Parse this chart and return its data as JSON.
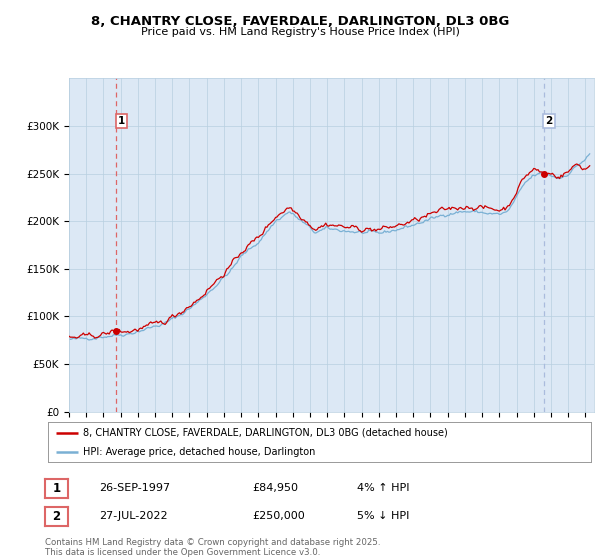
{
  "title": "8, CHANTRY CLOSE, FAVERDALE, DARLINGTON, DL3 0BG",
  "subtitle": "Price paid vs. HM Land Registry's House Price Index (HPI)",
  "ylim": [
    0,
    350000
  ],
  "yticks": [
    0,
    50000,
    100000,
    150000,
    200000,
    250000,
    300000
  ],
  "ytick_labels": [
    "£0",
    "£50K",
    "£100K",
    "£150K",
    "£200K",
    "£250K",
    "£300K"
  ],
  "sale1_date": 1997.74,
  "sale1_price": 84950,
  "sale1_label": "1",
  "sale2_date": 2022.57,
  "sale2_price": 250000,
  "sale2_label": "2",
  "line_color_price": "#cc0000",
  "line_color_hpi": "#7ab0d4",
  "dashed_line_color1": "#dd6666",
  "dashed_line_color2": "#aabbdd",
  "legend1": "8, CHANTRY CLOSE, FAVERDALE, DARLINGTON, DL3 0BG (detached house)",
  "legend2": "HPI: Average price, detached house, Darlington",
  "table_row1": [
    "1",
    "26-SEP-1997",
    "£84,950",
    "4% ↑ HPI"
  ],
  "table_row2": [
    "2",
    "27-JUL-2022",
    "£250,000",
    "5% ↓ HPI"
  ],
  "footnote": "Contains HM Land Registry data © Crown copyright and database right 2025.\nThis data is licensed under the Open Government Licence v3.0.",
  "background_color": "#ffffff",
  "chart_bg_color": "#dce8f5",
  "grid_color": "#b8cfe0"
}
